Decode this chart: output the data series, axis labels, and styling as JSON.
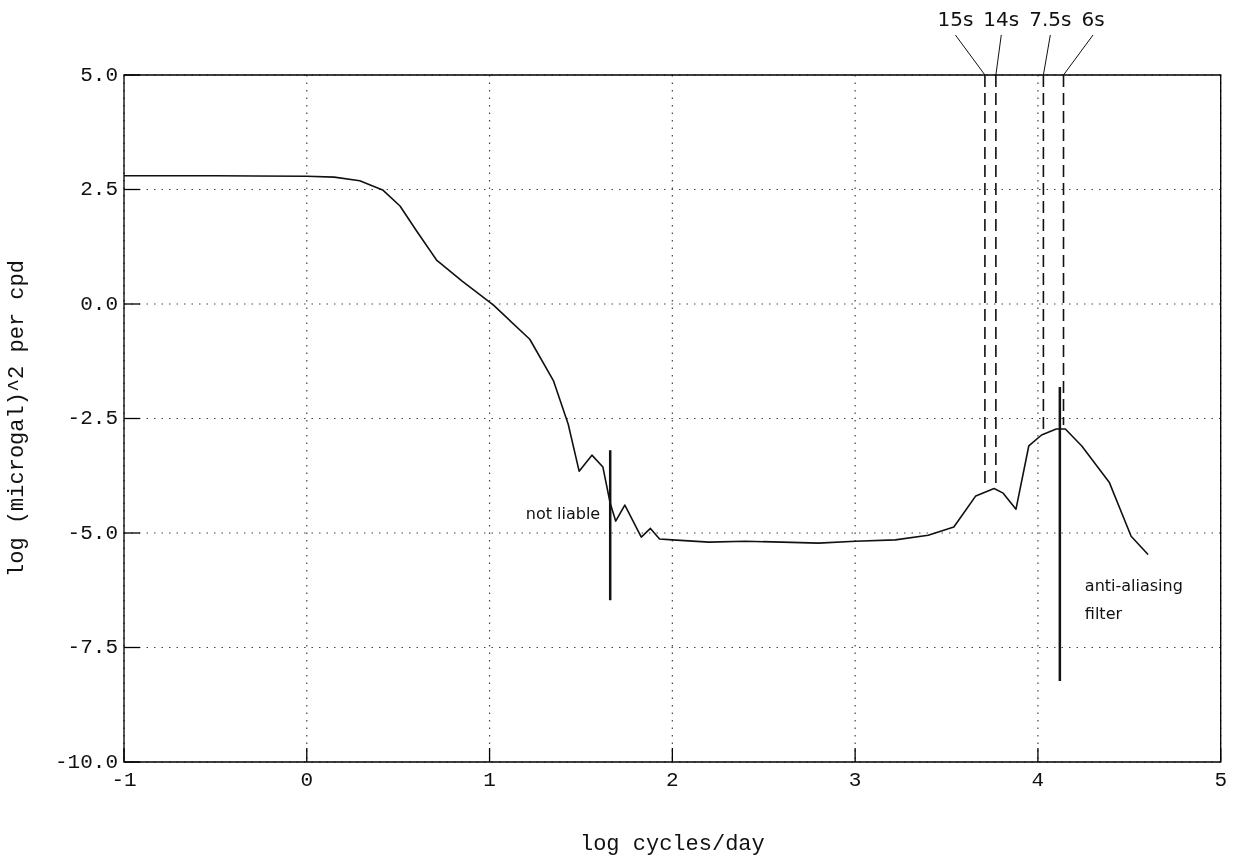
{
  "chart_data": {
    "type": "line",
    "xlabel": "log cycles/day",
    "ylabel": "log (microgal)^2 per cpd",
    "series": [
      {
        "color": "#111111",
        "x": [
          -1,
          -0.5,
          0,
          0.15,
          0.29,
          0.415,
          0.51,
          0.6,
          0.71,
          0.85,
          1.02,
          1.22,
          1.35,
          1.43,
          1.49,
          1.56,
          1.62,
          1.66,
          1.69,
          1.74,
          1.83,
          1.88,
          1.93,
          2.0,
          2.2,
          2.4,
          2.6,
          2.8,
          3.0,
          3.22,
          3.4,
          3.54,
          3.66,
          3.76,
          3.81,
          3.88,
          3.95,
          4.02,
          4.1,
          4.15,
          4.24,
          4.39,
          4.51,
          4.6
        ],
        "values": [
          2.8,
          2.8,
          2.79,
          2.77,
          2.69,
          2.49,
          2.14,
          1.6,
          0.96,
          0.5,
          -0.02,
          -0.77,
          -1.68,
          -2.62,
          -3.65,
          -3.3,
          -3.56,
          -4.35,
          -4.74,
          -4.39,
          -5.09,
          -4.9,
          -5.13,
          -5.15,
          -5.2,
          -5.18,
          -5.2,
          -5.22,
          -5.18,
          -5.15,
          -5.05,
          -4.87,
          -4.19,
          -4.03,
          -4.13,
          -4.48,
          -3.1,
          -2.86,
          -2.73,
          -2.73,
          -3.1,
          -3.89,
          -5.07,
          -5.46
        ]
      }
    ],
    "xlim": [
      -1,
      5
    ],
    "xticks": [
      -1,
      0,
      1,
      2,
      3,
      4,
      5
    ],
    "ylim": [
      -10,
      5
    ],
    "yticks": [
      {
        "value": -10,
        "label": "-10.0"
      },
      {
        "value": -7.5,
        "label": "-7.5"
      },
      {
        "value": -5,
        "label": "-5.0"
      },
      {
        "value": -2.5,
        "label": "-2.5"
      },
      {
        "value": 0,
        "label": "0.0"
      },
      {
        "value": 2.5,
        "label": "2.5"
      },
      {
        "value": 5,
        "label": "5.0"
      }
    ],
    "grid": true,
    "legend": false,
    "marker": "none",
    "line_style": "solid",
    "ref_lines": [
      {
        "axis": "x",
        "value": 3.71,
        "label": "15s",
        "line_style": "dashed"
      },
      {
        "axis": "x",
        "value": 3.77,
        "label": "14s",
        "line_style": "dashed"
      },
      {
        "axis": "x",
        "value": 4.03,
        "label": "7.5s",
        "line_style": "dashed"
      },
      {
        "axis": "x",
        "value": 4.14,
        "label": "6s",
        "line_style": "dashed"
      },
      {
        "axis": "x",
        "value": 1.66,
        "label": "not liable",
        "line_style": "solid"
      },
      {
        "axis": "x",
        "value": 4.12,
        "label": "anti-aliasing filter",
        "line_style": "solid"
      }
    ]
  }
}
